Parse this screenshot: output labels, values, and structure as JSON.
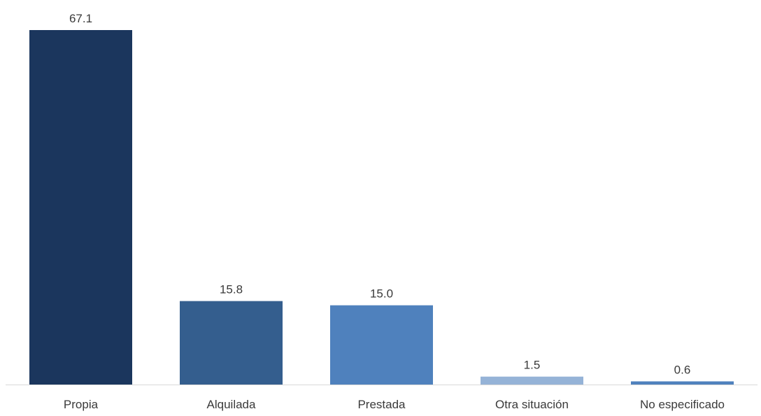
{
  "chart_data": {
    "type": "bar",
    "categories": [
      "Propia",
      "Alquilada",
      "Prestada",
      "Otra situación",
      "No especificado"
    ],
    "values": [
      67.1,
      15.8,
      15.0,
      1.5,
      0.6
    ],
    "value_labels": [
      "67.1",
      "15.8",
      "15.0",
      "1.5",
      "0.6"
    ],
    "bar_colors": [
      "#1b365d",
      "#345e8e",
      "#4f81bd",
      "#95b3d7",
      "#4f81bd"
    ],
    "title": "",
    "xlabel": "",
    "ylabel": "",
    "ylim": [
      0,
      67.1
    ],
    "grid": false,
    "legend": "none"
  }
}
